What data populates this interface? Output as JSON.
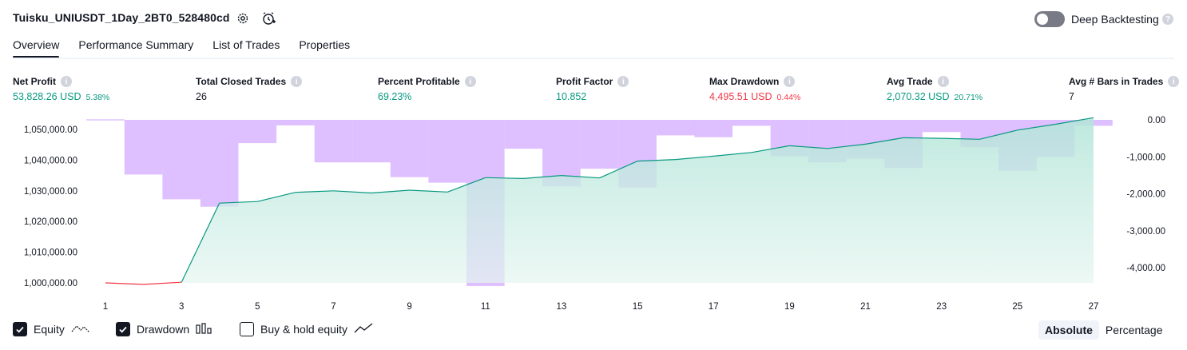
{
  "header": {
    "title": "Tuisku_UNIUSDT_1Day_2BT0_528480cd",
    "deep_backtesting_label": "Deep Backtesting",
    "deep_backtesting_enabled": false
  },
  "tabs": [
    {
      "label": "Overview",
      "active": true
    },
    {
      "label": "Performance Summary",
      "active": false
    },
    {
      "label": "List of Trades",
      "active": false
    },
    {
      "label": "Properties",
      "active": false
    }
  ],
  "stats": {
    "net_profit": {
      "label": "Net Profit",
      "value": "53,828.26 USD",
      "pct": "5.38%"
    },
    "total_closed_trades": {
      "label": "Total Closed Trades",
      "value": "26"
    },
    "percent_profitable": {
      "label": "Percent Profitable",
      "value": "69.23%"
    },
    "profit_factor": {
      "label": "Profit Factor",
      "value": "10.852"
    },
    "max_drawdown": {
      "label": "Max Drawdown",
      "value": "4,495.51 USD",
      "pct": "0.44%"
    },
    "avg_trade": {
      "label": "Avg Trade",
      "value": "2,070.32 USD",
      "pct": "20.71%"
    },
    "avg_bars": {
      "label": "Avg # Bars in Trades",
      "value": "7"
    }
  },
  "chart_data": {
    "type": "line",
    "x": [
      1,
      2,
      3,
      4,
      5,
      6,
      7,
      8,
      9,
      10,
      11,
      12,
      13,
      14,
      15,
      16,
      17,
      18,
      19,
      20,
      21,
      22,
      23,
      24,
      25,
      26,
      27
    ],
    "x_tick_labels": [
      "1",
      "3",
      "5",
      "7",
      "9",
      "11",
      "13",
      "15",
      "17",
      "19",
      "21",
      "23",
      "25",
      "27"
    ],
    "left_axis": {
      "ticks": [
        "1,000,000.00",
        "1,010,000.00",
        "1,020,000.00",
        "1,030,000.00",
        "1,040,000.00",
        "1,050,000.00"
      ],
      "range": [
        999000,
        1054000
      ]
    },
    "right_axis": {
      "ticks": [
        "0.00",
        "-1,000.00",
        "-2,000.00",
        "-3,000.00",
        "-4,000.00"
      ],
      "range": [
        -4500,
        0
      ]
    },
    "series": [
      {
        "name": "Equity",
        "axis": "left",
        "type": "area",
        "values": [
          1000000,
          999500,
          1000200,
          1026000,
          1026500,
          1029500,
          1030000,
          1029300,
          1030200,
          1029600,
          1034300,
          1034000,
          1035000,
          1034200,
          1039700,
          1040200,
          1041300,
          1042500,
          1044700,
          1043800,
          1045200,
          1047300,
          1047100,
          1046800,
          1049800,
          1051700,
          1053828.26
        ],
        "colors": {
          "positive_line": "#089981",
          "negative_line": "#f23645",
          "fill": "#b2e5d8"
        }
      },
      {
        "name": "Drawdown",
        "axis": "right",
        "type": "bar",
        "values": [
          0,
          -1480,
          -2150,
          -2350,
          -630,
          -150,
          -1150,
          -1150,
          -1550,
          -1700,
          -4495.51,
          -780,
          -1800,
          -1320,
          -1830,
          -420,
          -470,
          -160,
          -980,
          -1150,
          -1050,
          -1300,
          -330,
          -740,
          -1380,
          -1000,
          -160
        ],
        "color": "#d1a6ff"
      }
    ]
  },
  "legend": {
    "equity": {
      "label": "Equity",
      "checked": true,
      "icon": "equity-icon"
    },
    "drawdown": {
      "label": "Drawdown",
      "checked": true,
      "icon": "drawdown-icon"
    },
    "buy_hold": {
      "label": "Buy & hold equity",
      "checked": false,
      "icon": "buy-hold-icon"
    }
  },
  "view_mode": {
    "absolute": "Absolute",
    "percentage": "Percentage",
    "selected": "Absolute"
  }
}
